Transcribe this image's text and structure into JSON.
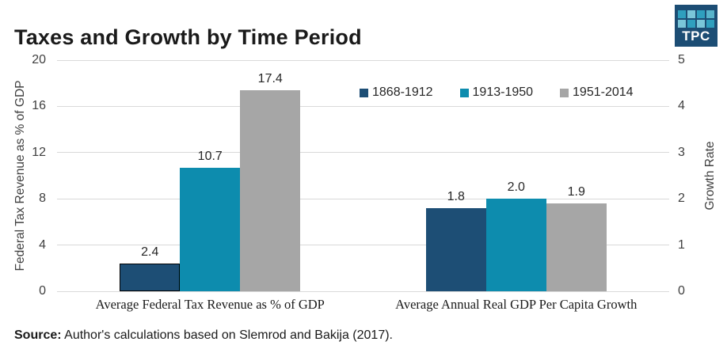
{
  "header": {
    "title": "Taxes and Growth by Time Period",
    "logo_text": "TPC",
    "logo_bg": "#1c4d74",
    "logo_squares": [
      "#2f9fbe",
      "#7ac6d9",
      "#2f9fbe",
      "#58b4cb",
      "#7ac6d9",
      "#2f9fbe",
      "#7ac6d9",
      "#2f9fbe"
    ]
  },
  "chart_data": {
    "type": "bar",
    "categories": [
      "Average Federal Tax Revenue as % of GDP",
      "Average Annual Real GDP Per Capita Growth"
    ],
    "series": [
      {
        "name": "1868-1912",
        "color": "#1d4e75",
        "values": [
          2.4,
          1.8
        ]
      },
      {
        "name": "1913-1950",
        "color": "#0d8cae",
        "values": [
          10.7,
          2.0
        ]
      },
      {
        "name": "1951-2014",
        "color": "#a6a6a6",
        "values": [
          17.4,
          1.9
        ]
      }
    ],
    "left_axis": {
      "label": "Federal Tax Revenue as % of GDP",
      "ticks": [
        0,
        4,
        8,
        12,
        16,
        20
      ],
      "max": 20
    },
    "right_axis": {
      "label": "Growth Rate",
      "ticks": [
        0,
        1,
        2,
        3,
        4,
        5
      ],
      "max": 5
    },
    "category_axis_map": [
      "left",
      "right"
    ],
    "bar_outline": {
      "category_index": 0,
      "series_index": 0,
      "color": "#000000"
    },
    "grid": true,
    "gridline_color": "#d9d9d9",
    "legend_position": "top-center-inside"
  },
  "footer": {
    "source_label": "Source:",
    "source_text": " Author's calculations based on Slemrod and Bakija (2017)."
  }
}
